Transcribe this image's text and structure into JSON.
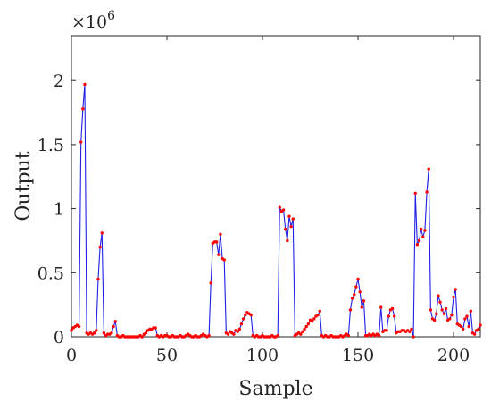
{
  "chart_data": {
    "type": "line",
    "xlabel": "Sample",
    "ylabel": "Output",
    "y_multiplier_text": "×10",
    "y_multiplier_exponent": "6",
    "xlim": [
      0,
      214
    ],
    "ylim": [
      0,
      2.35
    ],
    "x_ticks": [
      0,
      50,
      100,
      150,
      200
    ],
    "x_tick_labels": [
      "0",
      "50",
      "100",
      "150",
      "200"
    ],
    "y_ticks": [
      0,
      0.5,
      1,
      1.5,
      2
    ],
    "y_tick_labels": [
      "0",
      "0.5",
      "1",
      "1.5",
      "2"
    ],
    "grid": false,
    "y_units": "×10^6",
    "colors": {
      "line": "#1f1fe6",
      "markers": "#ff0000",
      "axes": "#262626"
    },
    "series": [
      {
        "line_color": "#1f1fe6",
        "marker_color": "#ff0000",
        "y": [
          0.05,
          0.07,
          0.08,
          0.09,
          0.08,
          1.52,
          1.78,
          1.97,
          0.03,
          0.02,
          0.03,
          0.02,
          0.03,
          0.05,
          0.45,
          0.7,
          0.81,
          0.03,
          0.01,
          0.02,
          0.02,
          0.03,
          0.08,
          0.12,
          0.01,
          0.0,
          0.0,
          0.01,
          0.0,
          0.0,
          0.0,
          0.0,
          0.0,
          0.0,
          0.0,
          0.0,
          0.01,
          0.0,
          0.02,
          0.03,
          0.05,
          0.06,
          0.06,
          0.07,
          0.07,
          0.01,
          0.0,
          0.01,
          0.0,
          0.01,
          0.01,
          0.0,
          0.0,
          0.01,
          0.0,
          0.0,
          0.0,
          0.01,
          0.0,
          0.0,
          0.01,
          0.02,
          0.01,
          0.0,
          0.0,
          0.01,
          0.0,
          0.0,
          0.01,
          0.02,
          0.01,
          0.0,
          0.01,
          0.42,
          0.73,
          0.74,
          0.74,
          0.64,
          0.8,
          0.61,
          0.6,
          0.03,
          0.02,
          0.04,
          0.03,
          0.02,
          0.05,
          0.04,
          0.06,
          0.1,
          0.14,
          0.17,
          0.19,
          0.18,
          0.17,
          0.01,
          0.0,
          0.01,
          0.0,
          0.0,
          0.01,
          0.0,
          0.0,
          0.0,
          0.0,
          0.01,
          0.0,
          0.0,
          0.01,
          1.01,
          0.98,
          0.99,
          0.84,
          0.75,
          0.94,
          0.86,
          0.92,
          0.01,
          0.02,
          0.03,
          0.02,
          0.04,
          0.06,
          0.08,
          0.1,
          0.13,
          0.12,
          0.14,
          0.16,
          0.17,
          0.2,
          0.01,
          0.0,
          0.01,
          0.0,
          0.0,
          0.01,
          0.0,
          0.0,
          0.0,
          0.0,
          0.01,
          0.0,
          0.01,
          0.02,
          0.01,
          0.21,
          0.3,
          0.33,
          0.39,
          0.45,
          0.35,
          0.23,
          0.28,
          0.01,
          0.01,
          0.02,
          0.01,
          0.02,
          0.01,
          0.02,
          0.01,
          0.23,
          0.04,
          0.05,
          0.05,
          0.16,
          0.21,
          0.22,
          0.16,
          0.03,
          0.04,
          0.04,
          0.05,
          0.05,
          0.04,
          0.05,
          0.04,
          0.06,
          0.0,
          1.12,
          0.72,
          0.75,
          0.84,
          0.78,
          0.83,
          1.13,
          1.31,
          0.21,
          0.14,
          0.13,
          0.18,
          0.32,
          0.27,
          0.21,
          0.18,
          0.22,
          0.13,
          0.14,
          0.17,
          0.31,
          0.37,
          0.1,
          0.09,
          0.08,
          0.06,
          0.14,
          0.16,
          0.08,
          0.2,
          0.03,
          0.02,
          0.05,
          0.06,
          0.09
        ]
      }
    ]
  }
}
